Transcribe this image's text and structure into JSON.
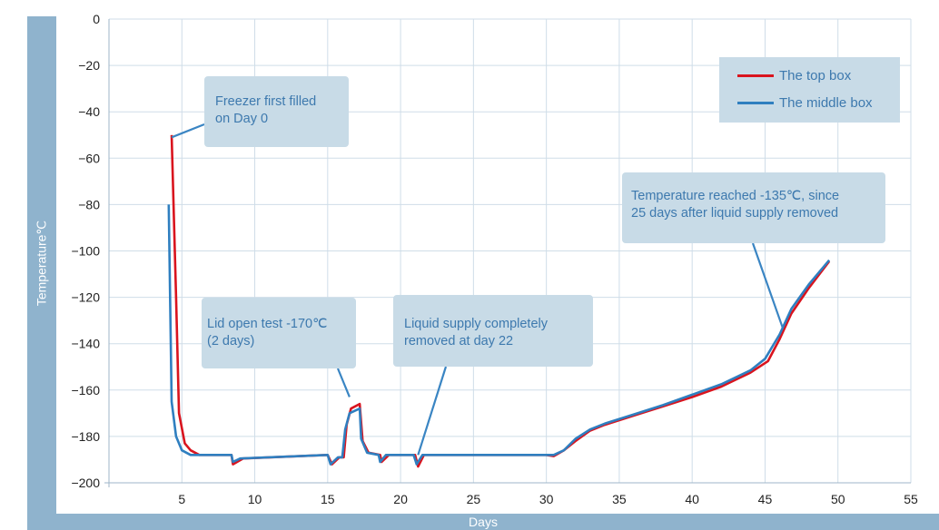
{
  "chart_data": {
    "type": "line",
    "xlabel": "Days",
    "ylabel": "Temperature℃",
    "xlim": [
      0,
      55
    ],
    "ylim": [
      -200,
      0
    ],
    "xticks": [
      5,
      10,
      15,
      20,
      25,
      30,
      35,
      40,
      45,
      50,
      55
    ],
    "yticks": [
      0,
      -20,
      -40,
      -60,
      -80,
      -100,
      -120,
      -140,
      -160,
      -180,
      -200
    ],
    "grid": true,
    "legend_position": "top-right",
    "series": [
      {
        "name": "The top box",
        "color": "#d9141e",
        "points": [
          [
            4.3,
            -50
          ],
          [
            4.6,
            -120
          ],
          [
            4.8,
            -170
          ],
          [
            5.2,
            -183
          ],
          [
            5.6,
            -186
          ],
          [
            6.2,
            -188
          ],
          [
            8.4,
            -188
          ],
          [
            8.5,
            -192
          ],
          [
            9.2,
            -189.5
          ],
          [
            15,
            -188
          ],
          [
            15.3,
            -192
          ],
          [
            15.8,
            -189
          ],
          [
            16.1,
            -189
          ],
          [
            16.3,
            -175
          ],
          [
            16.6,
            -168
          ],
          [
            17.2,
            -166
          ],
          [
            17.4,
            -182
          ],
          [
            17.8,
            -187
          ],
          [
            18.6,
            -188
          ],
          [
            18.7,
            -191
          ],
          [
            19.2,
            -188
          ],
          [
            21,
            -188
          ],
          [
            21.2,
            -193
          ],
          [
            21.6,
            -188
          ],
          [
            30,
            -188
          ],
          [
            30.5,
            -188.5
          ],
          [
            31.2,
            -186
          ],
          [
            32,
            -182
          ],
          [
            33,
            -177.5
          ],
          [
            34,
            -175
          ],
          [
            36,
            -171
          ],
          [
            38,
            -167
          ],
          [
            40,
            -163
          ],
          [
            42,
            -158.5
          ],
          [
            44,
            -152.5
          ],
          [
            45.2,
            -147.5
          ],
          [
            46,
            -138
          ],
          [
            46.8,
            -127
          ],
          [
            48,
            -116
          ],
          [
            49.4,
            -104.5
          ]
        ]
      },
      {
        "name": "The middle box",
        "color": "#2f7fc0",
        "points": [
          [
            4.1,
            -80
          ],
          [
            4.3,
            -165
          ],
          [
            4.6,
            -180
          ],
          [
            5,
            -186
          ],
          [
            5.6,
            -188
          ],
          [
            8.4,
            -188
          ],
          [
            8.5,
            -191
          ],
          [
            9,
            -189.5
          ],
          [
            15,
            -188
          ],
          [
            15.2,
            -192
          ],
          [
            15.7,
            -189
          ],
          [
            16,
            -189
          ],
          [
            16.2,
            -177
          ],
          [
            16.5,
            -170
          ],
          [
            17.2,
            -168
          ],
          [
            17.3,
            -181
          ],
          [
            17.7,
            -187
          ],
          [
            18.5,
            -188
          ],
          [
            18.6,
            -191
          ],
          [
            19,
            -188
          ],
          [
            20.9,
            -188
          ],
          [
            21.1,
            -192
          ],
          [
            21.5,
            -188
          ],
          [
            30,
            -188
          ],
          [
            30.5,
            -188
          ],
          [
            31.2,
            -186
          ],
          [
            32,
            -181
          ],
          [
            33,
            -177
          ],
          [
            34,
            -174.5
          ],
          [
            36,
            -170.5
          ],
          [
            38,
            -166.5
          ],
          [
            40,
            -162
          ],
          [
            42,
            -157.5
          ],
          [
            44,
            -151.5
          ],
          [
            45,
            -146.5
          ],
          [
            46,
            -136
          ],
          [
            46.8,
            -125
          ],
          [
            48,
            -114.5
          ],
          [
            49.4,
            -104
          ]
        ]
      }
    ],
    "annotations": [
      {
        "text": "Freezer first filled\non Day 0",
        "pointer_target": [
          4.3,
          -51
        ]
      },
      {
        "text": "Lid open test -170℃\n(2 days)",
        "pointer_target": [
          16.5,
          -163
        ]
      },
      {
        "text": "Liquid supply completely\nremoved at day 22",
        "pointer_target": [
          21.2,
          -188
        ]
      },
      {
        "text": "Temperature reached -135℃, since\n25 days after liquid supply removed",
        "pointer_target": [
          46.2,
          -133
        ]
      }
    ]
  }
}
